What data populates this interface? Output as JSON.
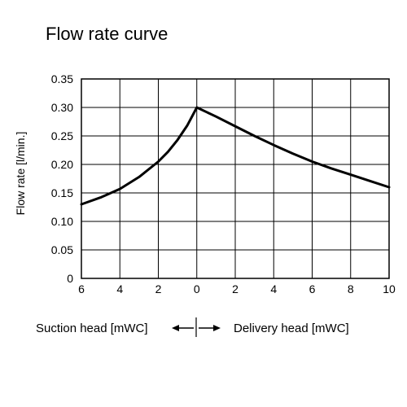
{
  "chart_data": {
    "type": "line",
    "title": "Flow rate curve",
    "ylabel": "Flow rate [l/min.]",
    "xlabel_left": "Suction head [mWC]",
    "xlabel_right": "Delivery head [mWC]",
    "x_tick_labels": [
      "6",
      "4",
      "2",
      "0",
      "2",
      "4",
      "6",
      "8",
      "10"
    ],
    "y_tick_labels": [
      "0",
      "0.05",
      "0.10",
      "0.15",
      "0.20",
      "0.25",
      "0.30",
      "0.35"
    ],
    "xlim": [
      -6,
      10
    ],
    "ylim": [
      0,
      0.35
    ],
    "grid": true,
    "series": [
      {
        "x": [
          -6,
          -5,
          -4,
          -3,
          -2,
          -1.5,
          -1,
          -0.5,
          0,
          1,
          2,
          3,
          4,
          5,
          6,
          7,
          8,
          9,
          10
        ],
        "y": [
          0.13,
          0.142,
          0.157,
          0.178,
          0.205,
          0.222,
          0.243,
          0.268,
          0.3,
          0.284,
          0.267,
          0.25,
          0.234,
          0.219,
          0.205,
          0.193,
          0.182,
          0.171,
          0.16
        ]
      }
    ],
    "color": "#000000"
  }
}
